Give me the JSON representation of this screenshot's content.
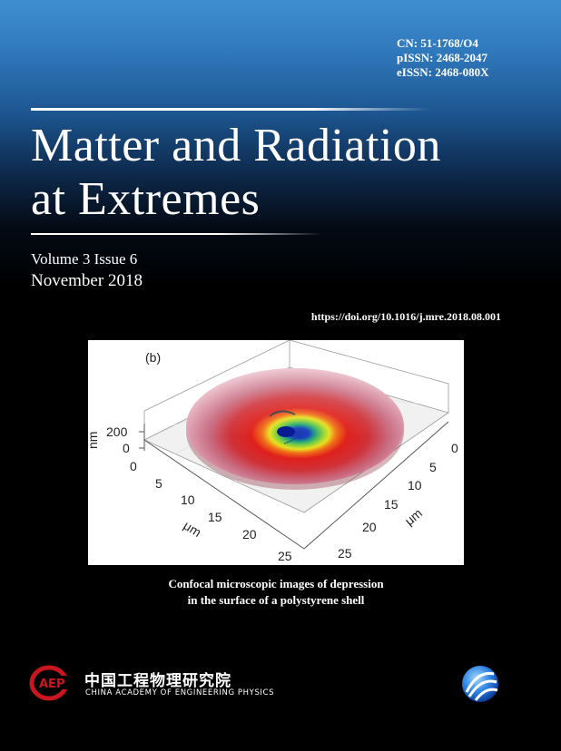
{
  "identifiers": {
    "cn": "CN: 51-1768/O4",
    "pissn": "pISSN: 2468-2047",
    "eissn": "eISSN: 2468-080X"
  },
  "journal": {
    "title_line1": "Matter and Radiation",
    "title_line2": "at Extremes"
  },
  "issue": {
    "volume_issue": "Volume 3 Issue 6",
    "date": "November 2018"
  },
  "doi": "https://doi.org/10.1016/j.mre.2018.08.001",
  "figure": {
    "panel_label": "(b)",
    "z_axis_label": "nm",
    "z_ticks": [
      "200",
      "0"
    ],
    "left_axis_label": "μm",
    "left_axis_ticks": [
      "0",
      "5",
      "10",
      "15",
      "20",
      "25"
    ],
    "right_axis_label": "μm",
    "right_axis_ticks": [
      "0",
      "5",
      "10",
      "15",
      "20",
      "25"
    ]
  },
  "caption": {
    "line1": "Confocal microscopic images of depression",
    "line2": "in the surface of a polystyrene shell"
  },
  "publisher": {
    "emblem_text": "AEP",
    "name_cn": "中国工程物理研究院",
    "name_en": "CHINA ACADEMY OF ENGINEERING PHYSICS"
  },
  "colors": {
    "background_top": "#3f8ed0",
    "background_bottom": "#000000",
    "logo_red": "#c8171e"
  }
}
